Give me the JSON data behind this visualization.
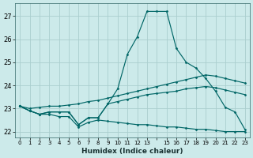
{
  "xlabel": "Humidex (Indice chaleur)",
  "background_color": "#cceaea",
  "grid_color": "#aacece",
  "line_color": "#006666",
  "xlim": [
    -0.5,
    23.5
  ],
  "ylim": [
    21.75,
    27.55
  ],
  "yticks": [
    22,
    23,
    24,
    25,
    26,
    27
  ],
  "xticks": [
    0,
    1,
    2,
    3,
    4,
    5,
    6,
    7,
    8,
    9,
    10,
    11,
    12,
    13,
    14,
    15,
    16,
    17,
    18,
    19,
    20,
    21,
    22,
    23
  ],
  "xtick_labels": [
    "0",
    "1",
    "2",
    "3",
    "4",
    "5",
    "6",
    "7",
    "8",
    "9",
    "10",
    "11",
    "12",
    "13",
    "",
    "15",
    "16",
    "17",
    "18",
    "19",
    "20",
    "21",
    "22",
    "23"
  ],
  "series": [
    [
      23.1,
      22.9,
      22.75,
      22.85,
      22.85,
      22.85,
      22.3,
      22.6,
      22.6,
      23.2,
      23.85,
      25.35,
      26.1,
      27.2,
      27.2,
      27.2,
      25.6,
      25.0,
      24.75,
      24.3,
      23.75,
      23.05,
      22.85,
      22.1
    ],
    [
      23.1,
      23.0,
      23.05,
      23.1,
      23.1,
      23.15,
      23.2,
      23.3,
      23.35,
      23.45,
      23.55,
      23.65,
      23.75,
      23.85,
      23.95,
      24.05,
      24.15,
      24.25,
      24.35,
      24.45,
      24.4,
      24.3,
      24.2,
      24.1
    ],
    [
      23.1,
      22.9,
      22.75,
      22.85,
      22.85,
      22.85,
      22.3,
      22.6,
      22.6,
      23.2,
      23.3,
      23.4,
      23.5,
      23.6,
      23.65,
      23.7,
      23.75,
      23.85,
      23.9,
      23.95,
      23.9,
      23.8,
      23.7,
      23.6
    ],
    [
      23.1,
      22.9,
      22.75,
      22.75,
      22.65,
      22.65,
      22.2,
      22.4,
      22.5,
      22.45,
      22.4,
      22.35,
      22.3,
      22.3,
      22.25,
      22.2,
      22.2,
      22.15,
      22.1,
      22.1,
      22.05,
      22.0,
      22.0,
      22.0
    ]
  ],
  "x_values": [
    0,
    1,
    2,
    3,
    4,
    5,
    6,
    7,
    8,
    9,
    10,
    11,
    12,
    13,
    14,
    15,
    16,
    17,
    18,
    19,
    20,
    21,
    22,
    23
  ],
  "ytick_fontsize": 6.0,
  "xtick_fontsize": 5.0,
  "xlabel_fontsize": 6.5
}
